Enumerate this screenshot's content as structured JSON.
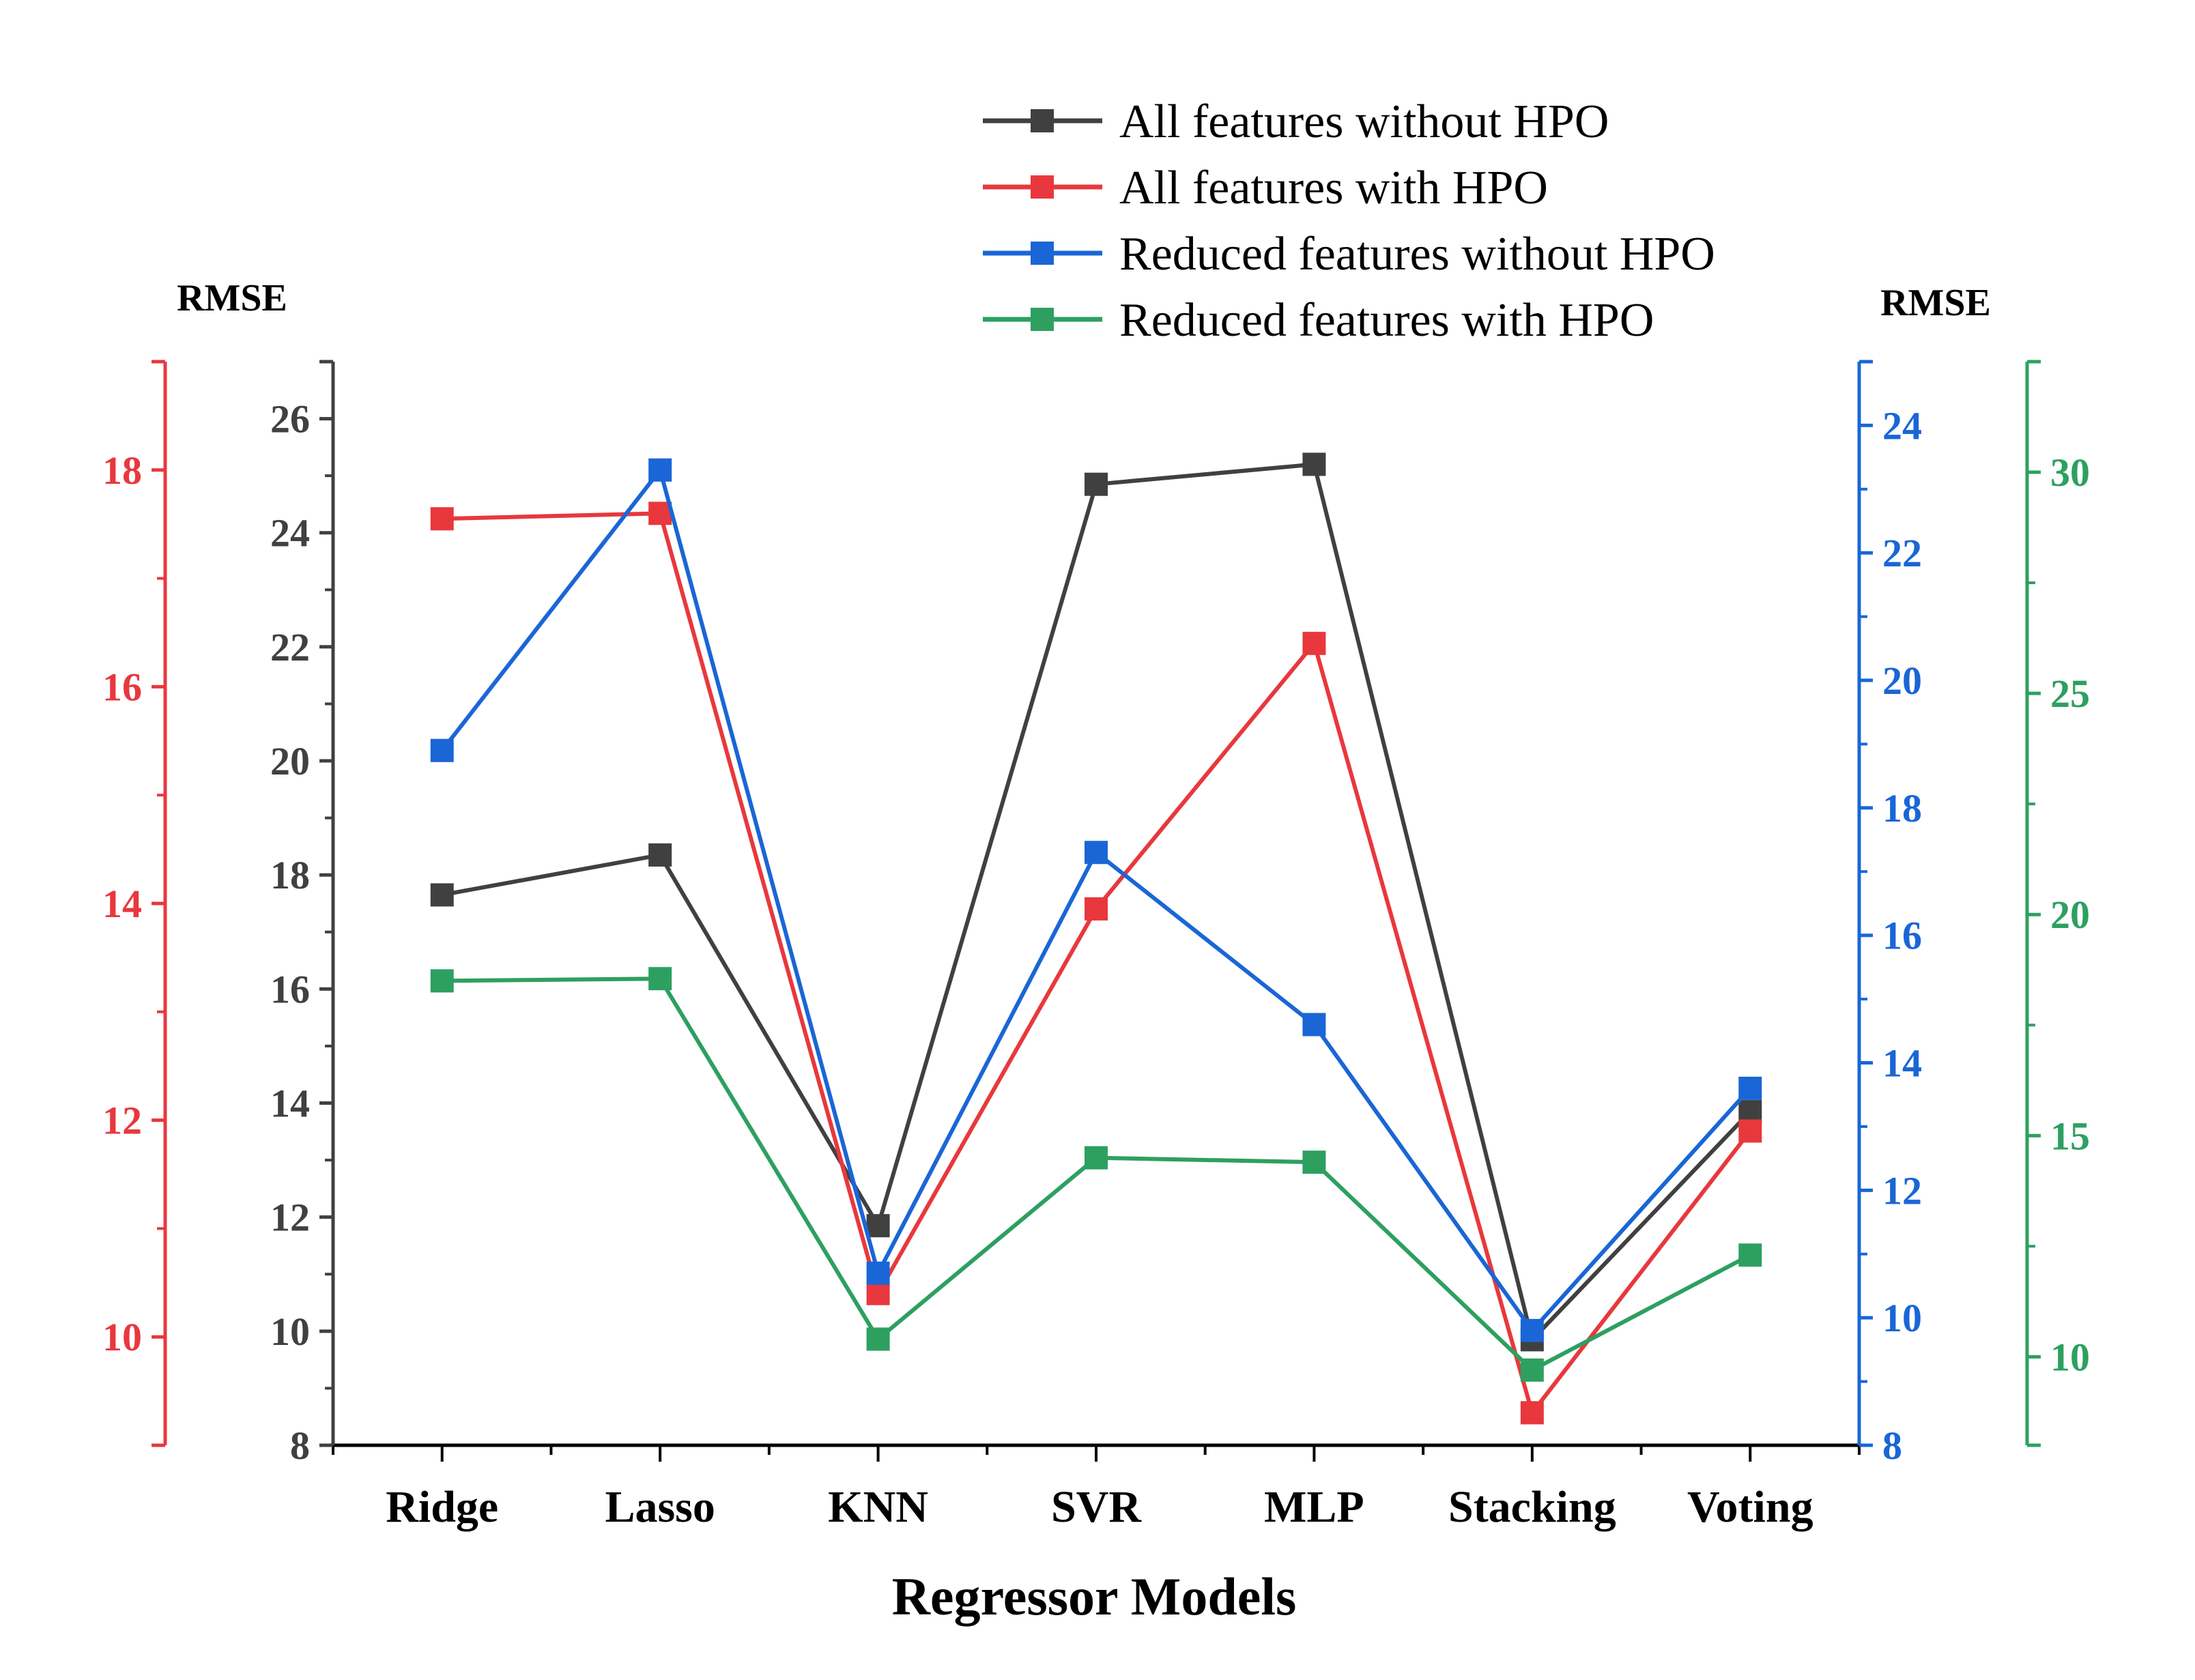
{
  "chart_data": {
    "type": "line",
    "title": "",
    "xlabel": "Regressor Models",
    "categories": [
      "Ridge",
      "Lasso",
      "KNN",
      "SVR",
      "MLP",
      "Stacking",
      "Voting"
    ],
    "axes": {
      "main": {
        "label": "",
        "range": [
          8,
          27
        ],
        "ticks": [
          8,
          10,
          12,
          14,
          16,
          18,
          20,
          22,
          24,
          26
        ],
        "color": "#404040"
      },
      "red": {
        "label": "RMSE",
        "range": [
          9,
          19
        ],
        "ticks": [
          10,
          12,
          14,
          16,
          18
        ],
        "color": "#e8383d"
      },
      "blue": {
        "label": "RMSE",
        "range": [
          8,
          25
        ],
        "ticks": [
          8,
          10,
          12,
          14,
          16,
          18,
          20,
          22,
          24
        ],
        "color": "#1a66d6"
      },
      "green": {
        "label": "",
        "range": [
          8,
          32.5
        ],
        "ticks": [
          10,
          15,
          20,
          25,
          30
        ],
        "color": "#2da060"
      }
    },
    "series": [
      {
        "name": "All features without HPO",
        "axis": "main",
        "color": "#404040",
        "values": [
          17.65,
          18.35,
          11.85,
          24.85,
          25.2,
          9.85,
          13.85
        ]
      },
      {
        "name": "All features with HPO",
        "axis": "red",
        "color": "#e8383d",
        "values": [
          17.55,
          17.6,
          10.4,
          13.95,
          16.4,
          9.3,
          11.9
        ]
      },
      {
        "name": "Reduced features without HPO",
        "axis": "blue",
        "color": "#1a66d6",
        "values": [
          18.9,
          23.3,
          10.7,
          17.3,
          14.6,
          9.8,
          13.6
        ]
      },
      {
        "name": "Reduced features with HPO",
        "axis": "green",
        "color": "#2da060",
        "values": [
          18.5,
          18.55,
          10.4,
          14.5,
          14.4,
          9.7,
          12.3
        ]
      }
    ]
  }
}
